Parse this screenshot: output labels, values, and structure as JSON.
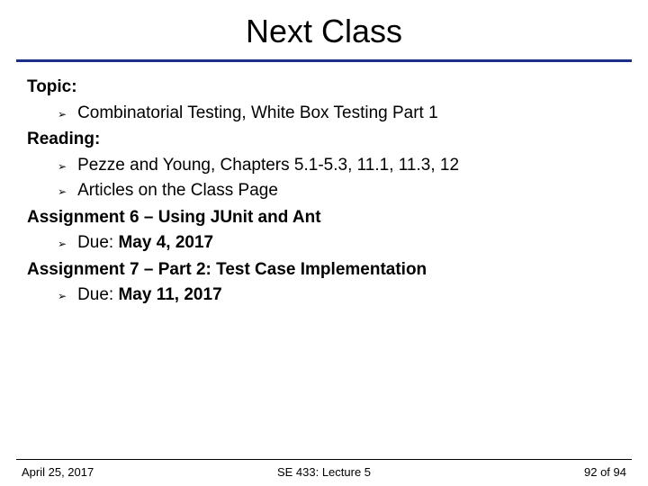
{
  "title": "Next Class",
  "sections": {
    "topic_label": "Topic:",
    "topic_item": "Combinatorial Testing, White Box Testing Part 1",
    "reading_label": "Reading:",
    "reading_item1": "Pezze and Young, Chapters 5.1-5.3, 11.1, 11.3, 12",
    "reading_item2": "Articles on the Class Page",
    "assign6_label": "Assignment 6 – Using JUnit and Ant",
    "assign6_due_prefix": "Due: ",
    "assign6_due_date": "May 4, 2017",
    "assign7_label": "Assignment 7 – Part 2: Test Case Implementation",
    "assign7_due_prefix": "Due: ",
    "assign7_due_date": "May 11, 2017"
  },
  "footer": {
    "date": "April 25, 2017",
    "center": "SE 433: Lecture 5",
    "page": "92 of 94"
  },
  "style": {
    "rule_color": "#1a2e8a",
    "title_fontsize": 36,
    "body_fontsize": 19,
    "footer_fontsize": 13,
    "bullet_glyph": "➢"
  }
}
